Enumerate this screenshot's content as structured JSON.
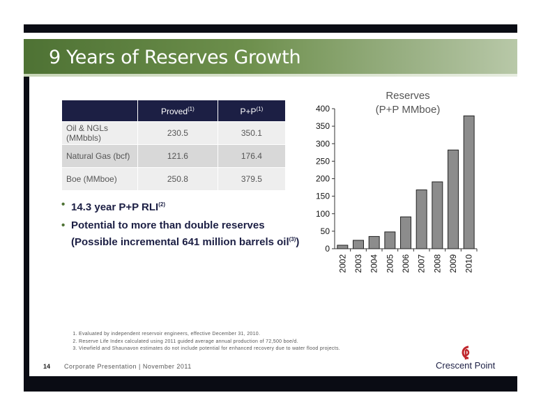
{
  "slide": {
    "title": "9 Years of Reserves Growth",
    "page_number": "14",
    "footer": "Corporate Presentation | November 2011",
    "brand": "Crescent Point"
  },
  "table": {
    "headers": {
      "col1": "Proved",
      "col1_sup": "(1)",
      "col2": "P+P",
      "col2_sup": "(1)"
    },
    "rows": [
      {
        "label": "Oil & NGLs (MMbbls)",
        "proved": "230.5",
        "pp": "350.1"
      },
      {
        "label": "Natural Gas (bcf)",
        "proved": "121.6",
        "pp": "176.4"
      },
      {
        "label": "Boe (MMboe)",
        "proved": "250.8",
        "pp": "379.5"
      }
    ]
  },
  "bullets": [
    {
      "text": "14.3 year P+P RLI",
      "sup": "(2)",
      "after": ""
    },
    {
      "text": "Potential to more than double reserves (Possible incremental 641 million barrels oil",
      "sup": "(3)",
      "after": ")"
    }
  ],
  "footnotes": [
    "Evaluated by independent reservoir engineers, effective December 31, 2010.",
    "Reserve Life Index calculated using 2011 guided average annual production of 72,500 boe/d.",
    "Viewfield and Shaunavon estimates do not include potential for enhanced recovery due to water flood projects."
  ],
  "colors": {
    "title_band": "#4e7234",
    "table_header": "#1c1f44",
    "bar_fill": "#8c8c8c",
    "frame": "#0a0c14"
  },
  "chart_data": {
    "type": "bar",
    "title": "Reserves",
    "subtitle": "(P+P MMboe)",
    "categories": [
      "2002",
      "2003",
      "2004",
      "2005",
      "2006",
      "2007",
      "2008",
      "2009",
      "2010"
    ],
    "values": [
      10,
      24,
      35,
      48,
      91,
      168,
      191,
      282,
      379.5
    ],
    "ylim": [
      0,
      400
    ],
    "yticks": [
      0,
      50,
      100,
      150,
      200,
      250,
      300,
      350,
      400
    ],
    "grid": false,
    "legend": "none"
  }
}
